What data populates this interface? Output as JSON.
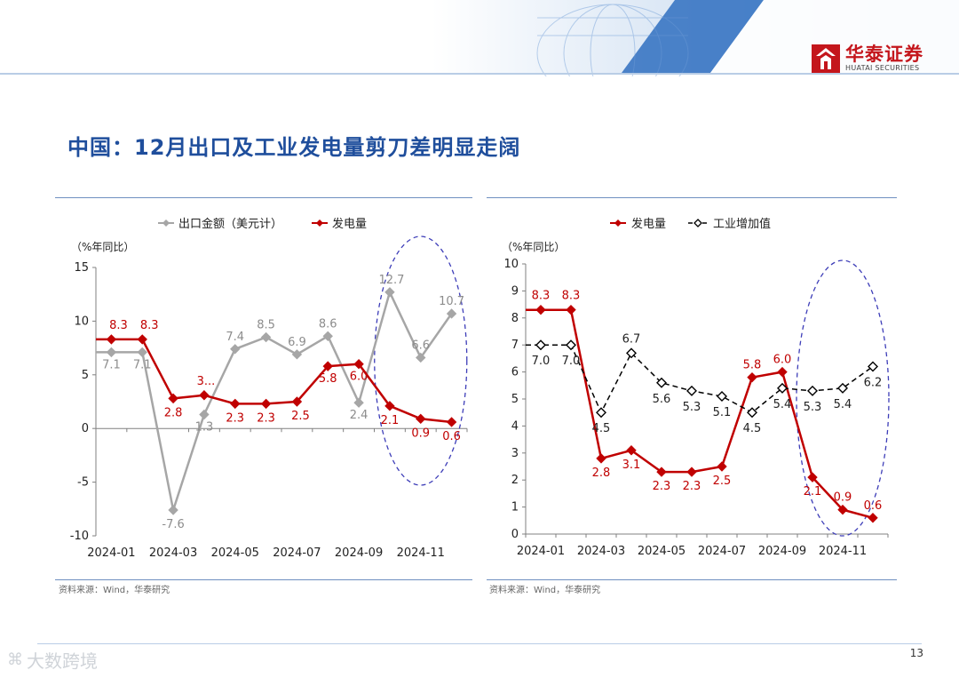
{
  "header": {
    "logo_cn": "华泰证券",
    "logo_en": "HUATAI SECURITIES"
  },
  "page_title": "中国：12月出口及工业发电量剪刀差明显走阔",
  "page_number": "13",
  "watermark": "大数跨境",
  "colors": {
    "accent_blue": "#1f4e9c",
    "red_series": "#c00000",
    "grey_series": "#a6a6a6",
    "black_series": "#000000",
    "highlight_ellipse": "#3d3db8"
  },
  "chart_data": [
    {
      "type": "line",
      "unit_label": "（%年同比）",
      "legend_position": "top",
      "x": [
        "2024-01",
        "2024-02",
        "2024-03",
        "2024-04",
        "2024-05",
        "2024-06",
        "2024-07",
        "2024-08",
        "2024-09",
        "2024-10",
        "2024-11",
        "2024-12"
      ],
      "x_tick_labels": [
        "2024-01",
        "2024-03",
        "2024-05",
        "2024-07",
        "2024-09",
        "2024-11"
      ],
      "ylim": [
        -10,
        15
      ],
      "y_ticks": [
        -10,
        -5,
        0,
        5,
        10,
        15
      ],
      "series": [
        {
          "name": "出口金额（美元计）",
          "color": "#a6a6a6",
          "marker": "diamond",
          "dash": "solid",
          "values": [
            7.1,
            7.1,
            -7.6,
            1.3,
            7.4,
            8.5,
            6.9,
            8.6,
            2.4,
            12.7,
            6.6,
            10.7
          ],
          "labels": [
            "7.1",
            "7.1",
            "-7.6",
            "1.3",
            "7.4",
            "8.5",
            "6.9",
            "8.6",
            "2.4",
            "12.7",
            "6.6",
            "10.7"
          ]
        },
        {
          "name": "发电量",
          "color": "#c00000",
          "marker": "diamond",
          "dash": "solid",
          "values": [
            8.3,
            8.3,
            2.8,
            3.1,
            2.3,
            2.3,
            2.5,
            5.8,
            6.0,
            2.1,
            0.9,
            0.6
          ],
          "labels": [
            "8.3",
            "8.3",
            "2.8",
            "3...",
            "2.3",
            "2.3",
            "2.5",
            "5.8",
            "6.0",
            "2.1",
            "0.9",
            "0.6"
          ]
        }
      ],
      "source": "资料来源：Wind，华泰研究"
    },
    {
      "type": "line",
      "unit_label": "（%年同比）",
      "legend_position": "top",
      "x": [
        "2024-01",
        "2024-02",
        "2024-03",
        "2024-04",
        "2024-05",
        "2024-06",
        "2024-07",
        "2024-08",
        "2024-09",
        "2024-10",
        "2024-11",
        "2024-12"
      ],
      "x_tick_labels": [
        "2024-01",
        "2024-03",
        "2024-05",
        "2024-07",
        "2024-09",
        "2024-11"
      ],
      "ylim": [
        0,
        10
      ],
      "y_ticks": [
        0,
        1,
        2,
        3,
        4,
        5,
        6,
        7,
        8,
        9,
        10
      ],
      "series": [
        {
          "name": "发电量",
          "color": "#c00000",
          "marker": "diamond",
          "dash": "solid",
          "values": [
            8.3,
            8.3,
            2.8,
            3.1,
            2.3,
            2.3,
            2.5,
            5.8,
            6.0,
            2.1,
            0.9,
            0.6
          ],
          "labels": [
            "8.3",
            "8.3",
            "2.8",
            "3.1",
            "2.3",
            "2.3",
            "2.5",
            "5.8",
            "6.0",
            "2.1",
            "0.9",
            "0.6"
          ]
        },
        {
          "name": "工业增加值",
          "color": "#000000",
          "marker": "diamond-open",
          "dash": "dashed",
          "values": [
            7.0,
            7.0,
            4.5,
            6.7,
            5.6,
            5.3,
            5.1,
            4.5,
            5.4,
            5.3,
            5.4,
            6.2
          ],
          "labels": [
            "7.0",
            "7.0",
            "4.5",
            "6.7",
            "5.6",
            "5.3",
            "5.1",
            "4.5",
            "5.4",
            "5.3",
            "5.4",
            "6.2"
          ]
        }
      ],
      "source": "资料来源：Wind，华泰研究"
    }
  ]
}
